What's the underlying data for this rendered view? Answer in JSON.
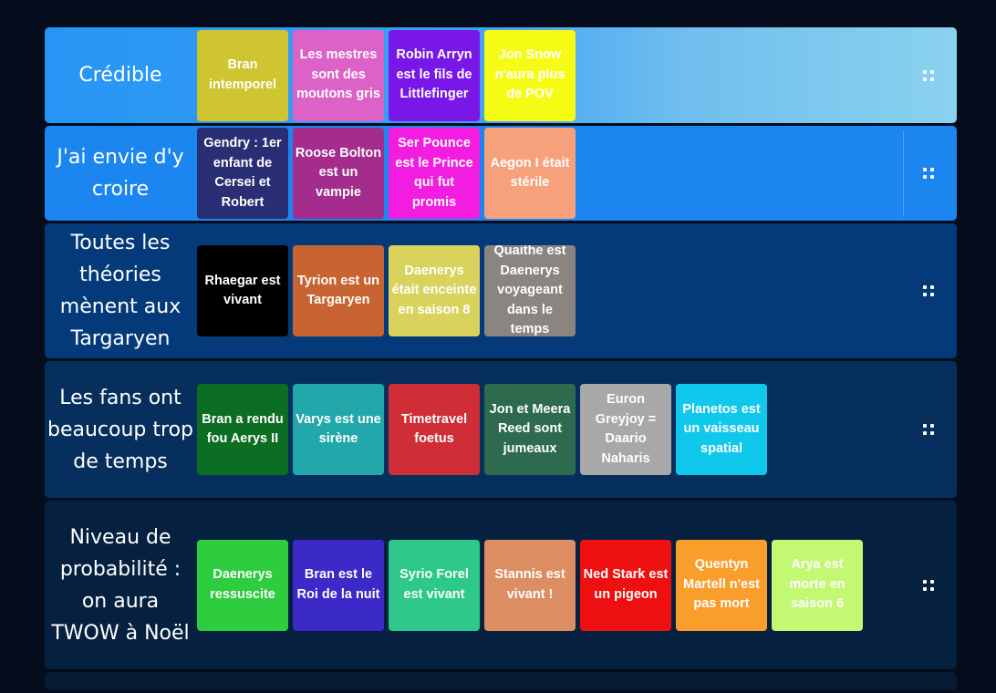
{
  "rows": [
    {
      "label": "Crédible",
      "background": "linear-gradient(90deg, #2695f5 0%, #3aa0f4 45%, #6fbeee 70%, #8ad2ee 100%)",
      "height": 105,
      "cards": [
        {
          "text": "Bran intemporel",
          "color": "#cfc531"
        },
        {
          "text": "Les mestres sont des moutons gris",
          "color": "#dd62c8"
        },
        {
          "text": "Robin Arryn est le fils de Littlefinger",
          "color": "#7817e8"
        },
        {
          "text": "Jon Snow n'aura plus de POV",
          "color": "#f6fb16"
        }
      ]
    },
    {
      "label": "J'ai envie d'y croire",
      "background": "#1c86f0",
      "height": 104,
      "cards": [
        {
          "text": "Gendry : 1er enfant de Cersei et Robert",
          "color": "#2a2e74"
        },
        {
          "text": "Roose Bolton est un vampie",
          "color": "#a32c8c"
        },
        {
          "text": "Ser Pounce est le Prince qui fut promis",
          "color": "#f21de0"
        },
        {
          "text": "Aegon I était stérile",
          "color": "#f7a07c"
        }
      ]
    },
    {
      "label": "Toutes les théories mènent aux Targaryen",
      "background": "#053a7a",
      "height": 148,
      "cards": [
        {
          "text": "Rhaegar  est vivant",
          "color": "#000000"
        },
        {
          "text": "Tyrion est un Targaryen",
          "color": "#c86432"
        },
        {
          "text": "Daenerys était enceinte en saison 8",
          "color": "#d9d35e"
        },
        {
          "text": "Quaithe est Daenerys voyageant dans le temps",
          "color": "#8a8580"
        }
      ]
    },
    {
      "label": "Les fans ont beaucoup trop de temps",
      "background": "#062f5e",
      "height": 150,
      "cards": [
        {
          "text": "Bran a rendu fou Aerys II",
          "color": "#0c6e22"
        },
        {
          "text": "Varys est une sirène",
          "color": "#22a8aa"
        },
        {
          "text": "Timetravel foetus",
          "color": "#cf2e36"
        },
        {
          "text": "Jon et Meera Reed sont jumeaux",
          "color": "#2d6a4e"
        },
        {
          "text": "Euron Greyjoy = Daario Naharis",
          "color": "#a8a8a8"
        },
        {
          "text": "Planetos est un vaisseau spatial",
          "color": "#10c8ec"
        }
      ]
    },
    {
      "label": "Niveau de probabilité : on aura TWOW à Noël",
      "background": "#05213f",
      "height": 185,
      "cards": [
        {
          "text": "Daenerys ressuscite",
          "color": "#2ecc3f"
        },
        {
          "text": "Bran est le Roi de la nuit",
          "color": "#3b2ac7"
        },
        {
          "text": "Syrio Forel est vivant",
          "color": "#2dc88a"
        },
        {
          "text": "Stannis est vivant !",
          "color": "#dc8e62"
        },
        {
          "text": "Ned Stark est un pigeon",
          "color": "#ee1010"
        },
        {
          "text": "Quentyn Martell n'est pas mort",
          "color": "#f99d2b"
        },
        {
          "text": "Arya est morte en saison 6",
          "color": "#c3f873"
        }
      ]
    },
    {
      "label": "",
      "background": "#061a33",
      "height": 20,
      "cards": []
    }
  ]
}
